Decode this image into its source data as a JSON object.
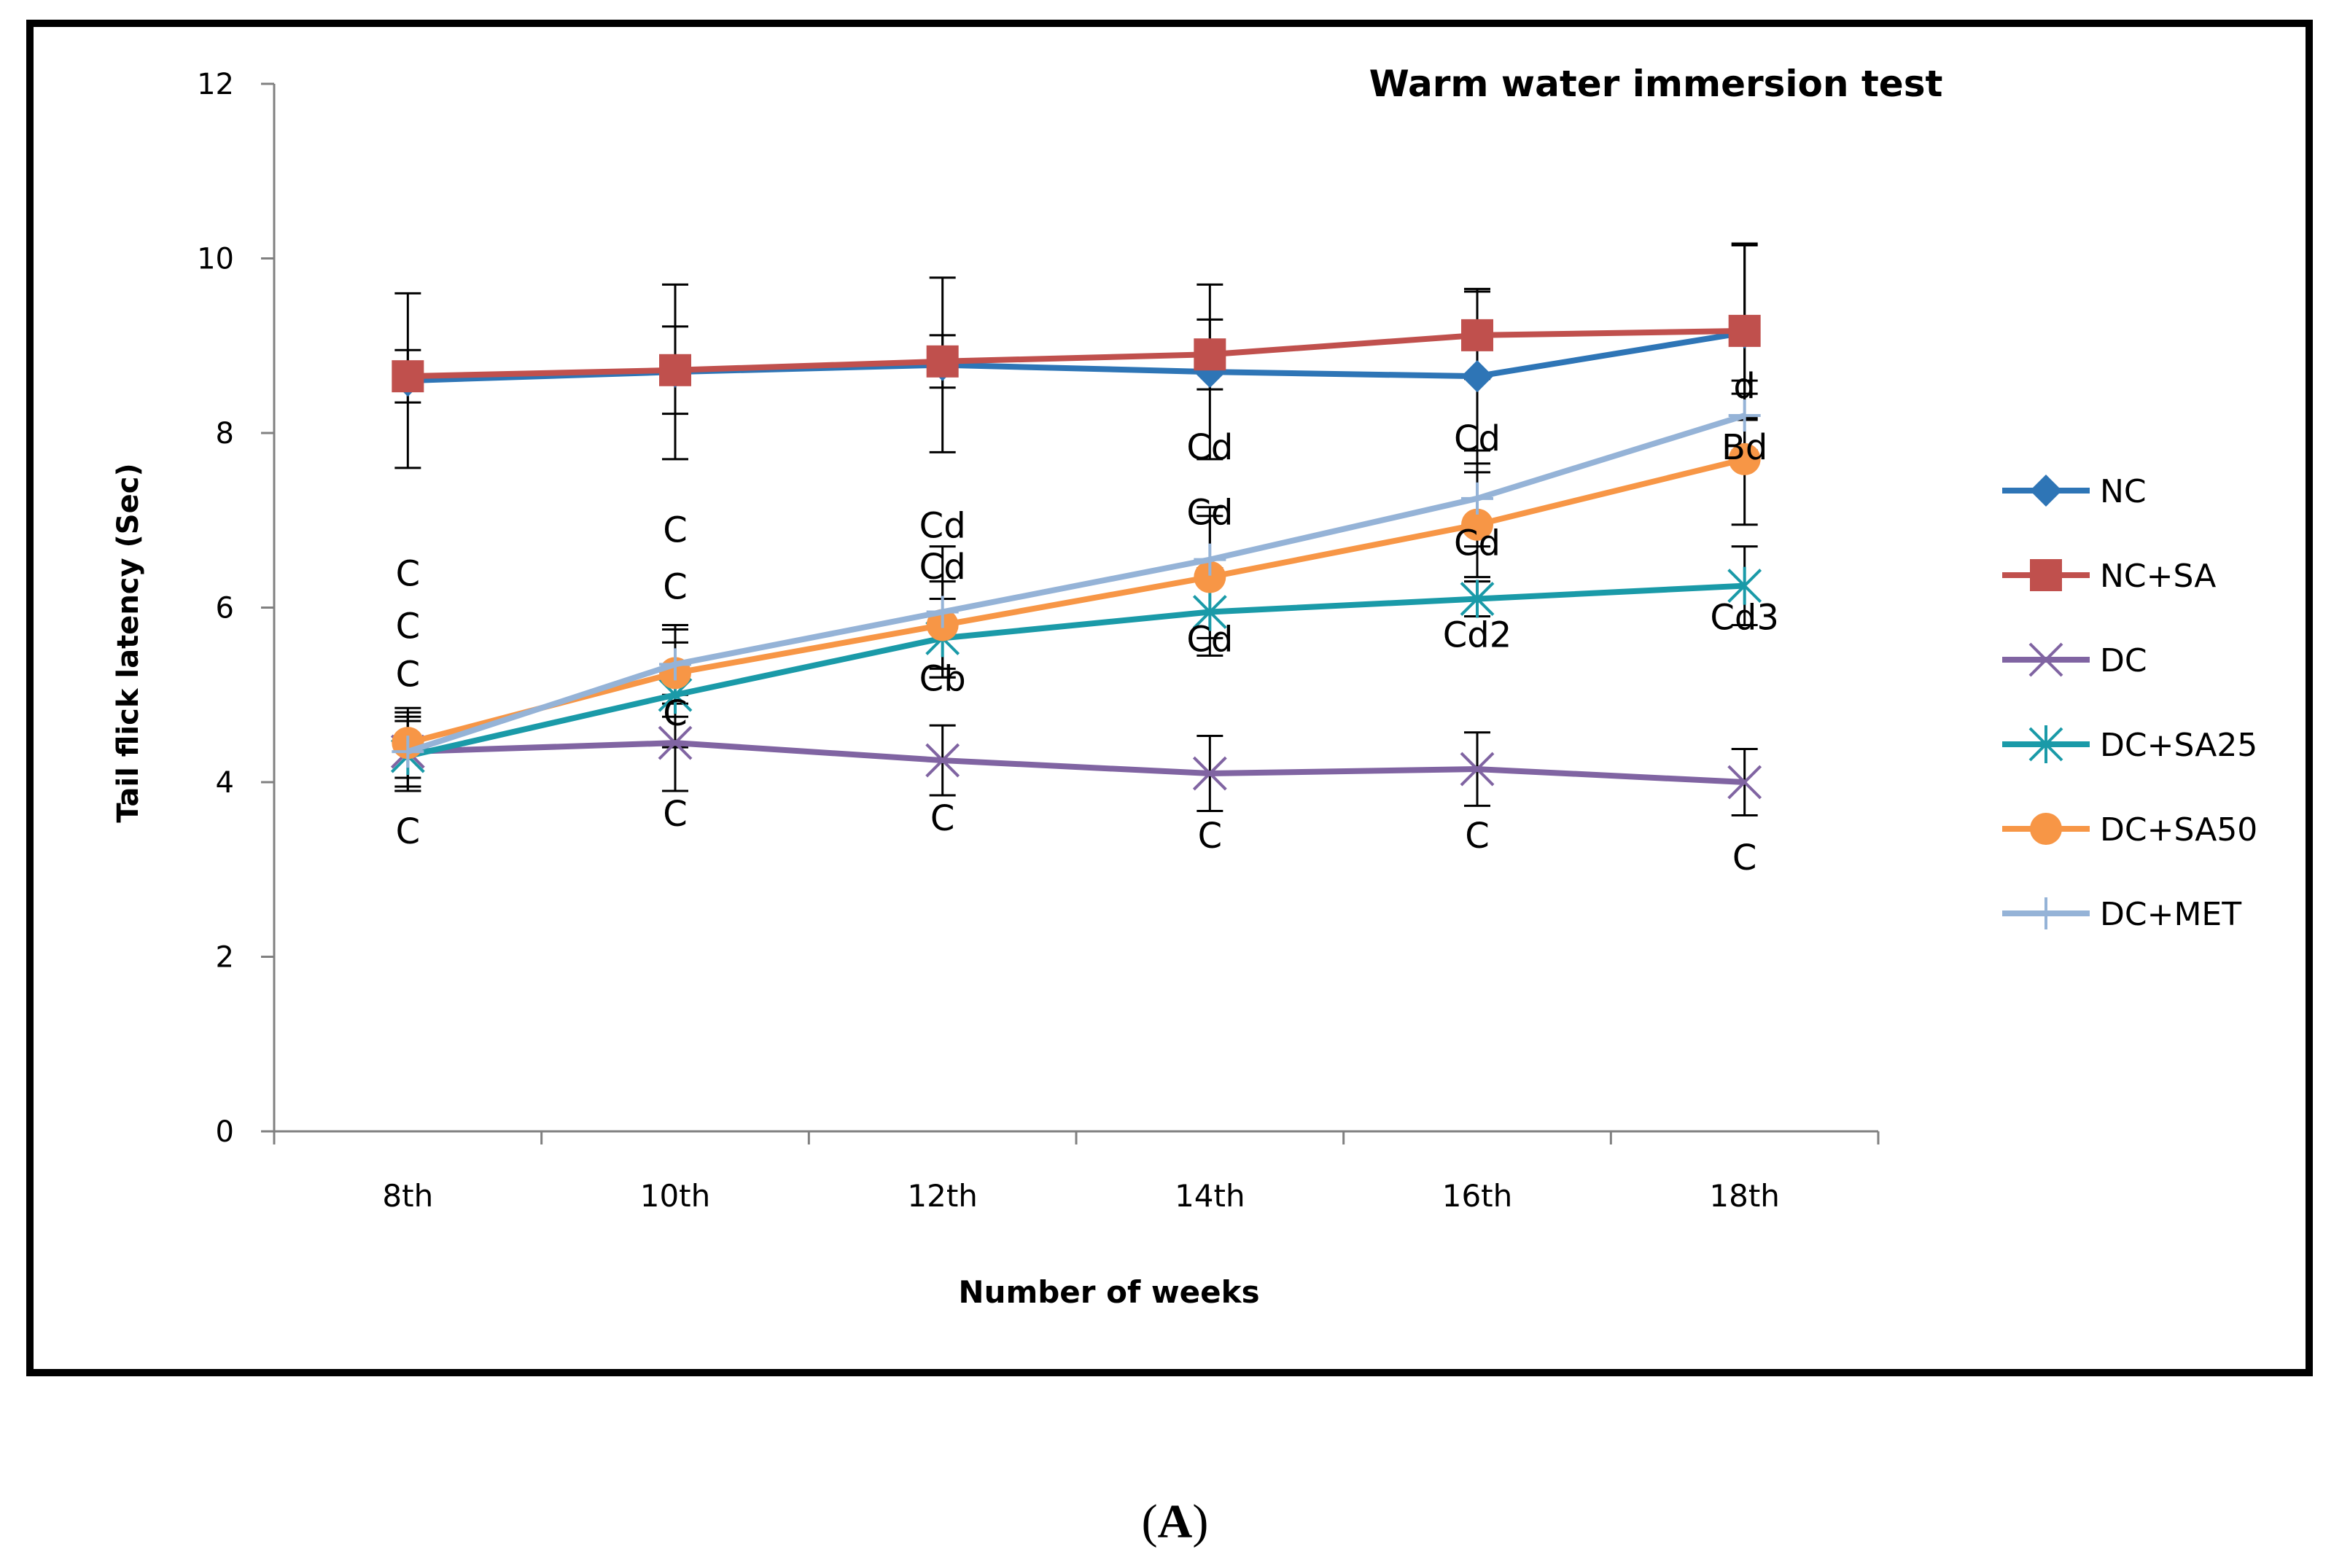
{
  "panel_label": {
    "open": "(",
    "letter": "A",
    "close": ")"
  },
  "chart_data": {
    "type": "line",
    "title": "Warm water immersion test",
    "xlabel": "Number of weeks",
    "ylabel": "Tail flick latency (Sec)",
    "categories": [
      "8th",
      "10th",
      "12th",
      "14th",
      "16th",
      "18th"
    ],
    "ylim": [
      0,
      12
    ],
    "yticks": [
      0,
      2,
      4,
      6,
      8,
      10,
      12
    ],
    "grid": false,
    "legend_position": "right",
    "series": [
      {
        "name": "NC",
        "color": "#2e75b6",
        "marker": "diamond",
        "values": [
          8.6,
          8.7,
          8.78,
          8.7,
          8.65,
          9.15
        ],
        "errors": [
          1.0,
          1.0,
          1.0,
          1.0,
          1.0,
          1.0
        ]
      },
      {
        "name": "NC+SA",
        "color": "#c0504d",
        "marker": "square",
        "values": [
          8.65,
          8.72,
          8.82,
          8.9,
          9.12,
          9.17
        ],
        "errors": [
          0.3,
          0.5,
          0.3,
          0.4,
          0.5,
          1.0
        ]
      },
      {
        "name": "DC",
        "color": "#8064a2",
        "marker": "x",
        "values": [
          4.35,
          4.45,
          4.25,
          4.1,
          4.15,
          4.0
        ],
        "errors": [
          0.4,
          0.55,
          0.4,
          0.43,
          0.42,
          0.38
        ]
      },
      {
        "name": "DC+SA25",
        "color": "#1a9aa8",
        "marker": "star",
        "values": [
          4.3,
          5.0,
          5.65,
          5.95,
          6.1,
          6.25
        ],
        "errors": [
          0.4,
          0.6,
          0.45,
          0.5,
          0.2,
          0.45
        ]
      },
      {
        "name": "DC+SA50",
        "color": "#f79646",
        "marker": "circle",
        "values": [
          4.45,
          5.25,
          5.8,
          6.35,
          6.95,
          7.7
        ],
        "errors": [
          0.4,
          0.5,
          0.5,
          0.7,
          0.6,
          0.75
        ]
      },
      {
        "name": "DC+MET",
        "color": "#95b3d7",
        "marker": "plus",
        "values": [
          4.35,
          5.35,
          5.95,
          6.55,
          7.25,
          8.2
        ],
        "errors": [
          0.45,
          0.45,
          0.75,
          0.6,
          0.55,
          0.4
        ]
      }
    ],
    "annotations": [
      {
        "text": "C",
        "x": "8th",
        "y": 6.25
      },
      {
        "text": "C",
        "x": "8th",
        "y": 5.65
      },
      {
        "text": "C",
        "x": "8th",
        "y": 5.1
      },
      {
        "text": "C",
        "x": "8th",
        "y": 3.3
      },
      {
        "text": "C",
        "x": "10th",
        "y": 6.75
      },
      {
        "text": "C",
        "x": "10th",
        "y": 6.1
      },
      {
        "text": "C",
        "x": "10th",
        "y": 4.65
      },
      {
        "text": "C",
        "x": "10th",
        "y": 3.5
      },
      {
        "text": "Cd",
        "x": "12th",
        "y": 6.8
      },
      {
        "text": "Cd",
        "x": "12th",
        "y": 6.33
      },
      {
        "text": "Cb",
        "x": "12th",
        "y": 5.05
      },
      {
        "text": "C",
        "x": "12th",
        "y": 3.45
      },
      {
        "text": "Cd",
        "x": "14th",
        "y": 7.7
      },
      {
        "text": "Cd",
        "x": "14th",
        "y": 6.95
      },
      {
        "text": "Cd",
        "x": "14th",
        "y": 5.5
      },
      {
        "text": "C",
        "x": "14th",
        "y": 3.25
      },
      {
        "text": "Cd",
        "x": "16th",
        "y": 7.8
      },
      {
        "text": "Cd",
        "x": "16th",
        "y": 6.6
      },
      {
        "text": "Cd2",
        "x": "16th",
        "y": 5.55
      },
      {
        "text": "C",
        "x": "16th",
        "y": 3.25
      },
      {
        "text": "d",
        "x": "18th",
        "y": 8.4
      },
      {
        "text": "Bd",
        "x": "18th",
        "y": 7.7
      },
      {
        "text": "Cd3",
        "x": "18th",
        "y": 5.75
      },
      {
        "text": "C",
        "x": "18th",
        "y": 3.0
      }
    ]
  }
}
